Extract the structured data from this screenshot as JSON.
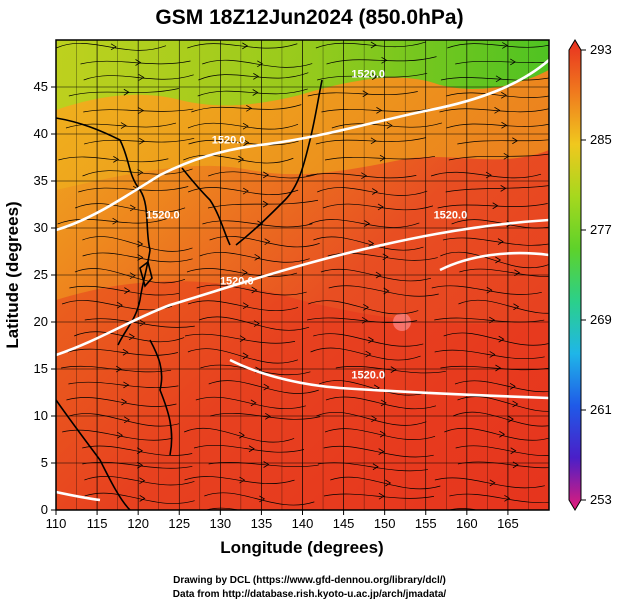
{
  "title": "GSM 18Z12Jun2024 (850.0hPa)",
  "xlabel": "Longitude (degrees)",
  "ylabel": "Latitude  (degrees)",
  "credits": [
    "Drawing by DCL (https://www.gfd-dennou.org/library/dcl/)",
    "Data from http://database.rish.kyoto-u.ac.jp/arch/jmadata/"
  ],
  "chart_data": {
    "type": "heatmap",
    "title": "GSM 18Z12Jun2024 (850.0hPa)",
    "xlabel": "Longitude (degrees)",
    "ylabel": "Latitude  (degrees)",
    "xlim": [
      110,
      170
    ],
    "ylim": [
      0,
      50
    ],
    "x_ticks": [
      "110",
      "115",
      "120",
      "125",
      "130",
      "135",
      "140",
      "145",
      "150",
      "155",
      "160",
      "165"
    ],
    "y_ticks": [
      "0",
      "5",
      "10",
      "15",
      "20",
      "25",
      "30",
      "35",
      "40",
      "45"
    ],
    "grid": true,
    "colorbar": {
      "min": 253,
      "max": 293,
      "tick_labels": [
        "293",
        "285",
        "277",
        "269",
        "261",
        "253"
      ],
      "colors": [
        "#e41c78",
        "#4a1fc8",
        "#1f5ae8",
        "#1fb6e8",
        "#2bd08a",
        "#5ed22a",
        "#a6d81e",
        "#f0c81e",
        "#f07a1e",
        "#e83020"
      ]
    },
    "contour_labels": [
      {
        "text": "1520.0",
        "lon": 131,
        "lat": 39
      },
      {
        "text": "1520.0",
        "lon": 123,
        "lat": 31
      },
      {
        "text": "1520.0",
        "lon": 132,
        "lat": 24
      },
      {
        "text": "1520.0",
        "lon": 158,
        "lat": 31
      },
      {
        "text": "1520.0",
        "lon": 148,
        "lat": 14
      },
      {
        "text": "1520.0",
        "lon": 148,
        "lat": 46
      }
    ]
  }
}
